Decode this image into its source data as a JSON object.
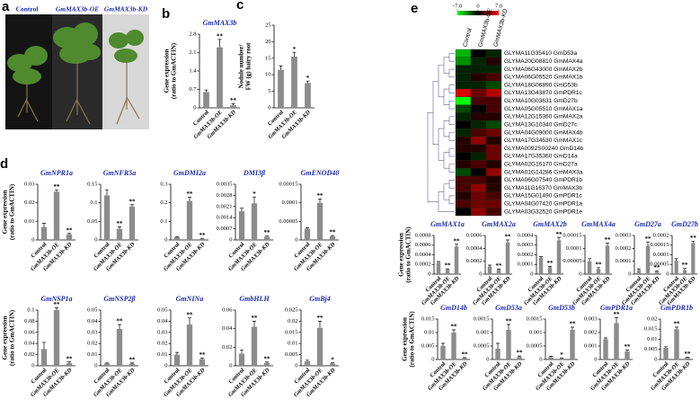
{
  "photo": {
    "panel_label": "a",
    "labels": [
      "Control",
      "GmMAX3b-OE",
      "GmMAX3b-KD"
    ]
  },
  "chart_data": [
    {
      "type": "bar",
      "panel_label": "b",
      "title": "GmMAX3b",
      "ylabel": [
        "Gene expression",
        "(ratio to GmACTIN)"
      ],
      "categories": [
        "Control",
        "GmMAX3b-OE",
        "GmMAX3b-KD"
      ],
      "values": [
        0.6,
        2.3,
        0.1
      ],
      "errors": [
        0.08,
        0.3,
        0.05
      ],
      "ylim": [
        0,
        2.8
      ],
      "yticks": [
        0,
        0.7,
        1.4,
        2.1,
        2.8
      ],
      "color": "#8c8c8c",
      "significance": [
        {
          "index": 1,
          "text": "**"
        },
        {
          "index": 2,
          "text": "**"
        }
      ]
    },
    {
      "type": "bar",
      "panel_label": "c",
      "ylabel": [
        "Nodule number/",
        "FW (g) hairy root"
      ],
      "categories": [
        "Control",
        "GmMAX3b-OE",
        "GmMAX3b-KD"
      ],
      "values": [
        11.5,
        15.5,
        7.5
      ],
      "errors": [
        1.2,
        1.3,
        0.6
      ],
      "ylim": [
        0,
        25
      ],
      "yticks": [
        0,
        5,
        10,
        15,
        20,
        25
      ],
      "color": "#8c8c8c",
      "significance": [
        {
          "index": 1,
          "text": "*"
        },
        {
          "index": 2,
          "text": "*"
        }
      ]
    },
    {
      "type": "bar",
      "panel_label": "d",
      "title": "GmNPR1a",
      "ylabel": [
        "Gene expression",
        "(ratio to GmACTIN)"
      ],
      "categories": [
        "Control",
        "GmMAX3b-OE",
        "GmMAX3b-KD"
      ],
      "values": [
        0.007,
        0.026,
        0.003
      ],
      "errors": [
        0.002,
        0.001,
        0.0005
      ],
      "ylim": [
        0,
        0.03
      ],
      "yticks": [
        0,
        0.01,
        0.02,
        0.03
      ],
      "color": "#8c8c8c",
      "significance": [
        {
          "index": 1,
          "text": "**"
        },
        {
          "index": 2,
          "text": "**"
        }
      ]
    },
    {
      "type": "bar",
      "title": "GmNFR5a",
      "categories": [
        "Control",
        "GmMAX3b-OE",
        "GmMAX3b-KD"
      ],
      "values": [
        0.12,
        0.03,
        0.09
      ],
      "errors": [
        0.015,
        0.005,
        0.005
      ],
      "ylim": [
        0,
        0.15
      ],
      "yticks": [
        0,
        0.05,
        0.1,
        0.15
      ],
      "color": "#8c8c8c",
      "significance": [
        {
          "index": 1,
          "text": "**"
        },
        {
          "index": 2,
          "text": "**"
        }
      ]
    },
    {
      "type": "bar",
      "title": "GmDMI2a",
      "categories": [
        "Control",
        "GmMAX3b-OE",
        "GmMAX3b-KD"
      ],
      "values": [
        0.015,
        0.21,
        0.005
      ],
      "errors": [
        0.003,
        0.02,
        0.002
      ],
      "ylim": [
        0,
        0.3
      ],
      "yticks": [
        0,
        0.1,
        0.2,
        0.3
      ],
      "color": "#8c8c8c",
      "significance": [
        {
          "index": 1,
          "text": "**"
        },
        {
          "index": 2,
          "text": "**"
        }
      ]
    },
    {
      "type": "bar",
      "title": "DMI3β",
      "categories": [
        "Control",
        "GmMAX3b-OE",
        "GmMAX3b-KD"
      ],
      "values": [
        0.0018,
        0.0023,
        0.0002
      ],
      "errors": [
        0.0002,
        0.0004,
        5e-05
      ],
      "ylim": [
        0,
        0.0035
      ],
      "yticks": [
        0,
        0.0007,
        0.0014,
        0.0021,
        0.0028,
        0.0035
      ],
      "color": "#8c8c8c",
      "significance": [
        {
          "index": 1,
          "text": "*"
        },
        {
          "index": 2,
          "text": "**"
        }
      ]
    },
    {
      "type": "bar",
      "title": "GmENOD40",
      "categories": [
        "Control",
        "GmMAX3b-OE",
        "GmMAX3b-KD"
      ],
      "values": [
        3e-05,
        0.0001,
        1e-05
      ],
      "errors": [
        3e-06,
        1e-05,
        2e-06
      ],
      "ylim": [
        0,
        0.00015
      ],
      "yticks": [
        0,
        5e-05,
        0.0001,
        0.00015
      ],
      "color": "#8c8c8c",
      "significance": [
        {
          "index": 1,
          "text": "**"
        },
        {
          "index": 2,
          "text": "**"
        }
      ]
    },
    {
      "type": "bar",
      "title": "GmNSP1a",
      "ylabel": [
        "Gene expression",
        "(ratio to GmACTIN)"
      ],
      "categories": [
        "Control",
        "GmMAX3b-OE",
        "GmMAX3b-KD"
      ],
      "values": [
        0.03,
        0.1,
        0.005
      ],
      "errors": [
        0.012,
        0.004,
        0.002
      ],
      "ylim": [
        0,
        0.1
      ],
      "yticks": [
        0,
        0.02,
        0.04,
        0.06,
        0.08,
        0.1
      ],
      "color": "#8c8c8c",
      "significance": [
        {
          "index": 1,
          "text": "**"
        },
        {
          "index": 2,
          "text": "**"
        }
      ]
    },
    {
      "type": "bar",
      "title": "GmNSP2β",
      "categories": [
        "Control",
        "GmMAX3b-OE",
        "GmMAX3b-KD"
      ],
      "values": [
        0.002,
        0.033,
        0.002
      ],
      "errors": [
        0.0005,
        0.004,
        0.0005
      ],
      "ylim": [
        0,
        0.05
      ],
      "yticks": [
        0,
        0.01,
        0.02,
        0.03,
        0.04,
        0.05
      ],
      "color": "#8c8c8c",
      "significance": [
        {
          "index": 1,
          "text": "**"
        },
        {
          "index": 2,
          "text": "**"
        }
      ]
    },
    {
      "type": "bar",
      "title": "GmNINa",
      "categories": [
        "Control",
        "GmMAX3b-OE",
        "GmMAX3b-KD"
      ],
      "values": [
        0.01,
        0.037,
        0.006
      ],
      "errors": [
        0.002,
        0.006,
        0.001
      ],
      "ylim": [
        0,
        0.05
      ],
      "yticks": [
        0,
        0.01,
        0.02,
        0.03,
        0.04,
        0.05
      ],
      "color": "#8c8c8c",
      "significance": [
        {
          "index": 1,
          "text": "**"
        },
        {
          "index": 2,
          "text": "**"
        }
      ]
    },
    {
      "type": "bar",
      "title": "GmbHLH",
      "categories": [
        "Control",
        "GmMAX3b-OE",
        "GmMAX3b-KD"
      ],
      "values": [
        0.013,
        0.042,
        0.003
      ],
      "errors": [
        0.004,
        0.006,
        0.001
      ],
      "ylim": [
        0,
        0.06
      ],
      "yticks": [
        0,
        0.02,
        0.04,
        0.06
      ],
      "color": "#8c8c8c",
      "significance": [
        {
          "index": 1,
          "text": "**"
        },
        {
          "index": 2,
          "text": "**"
        }
      ]
    },
    {
      "type": "bar",
      "title": "GmBj4",
      "categories": [
        "Control",
        "GmMAX3b-OE",
        "GmMAX3b-KD"
      ],
      "values": [
        0.002,
        0.017,
        0.001
      ],
      "errors": [
        0.0005,
        0.003,
        0.0003
      ],
      "ylim": [
        0,
        0.025
      ],
      "yticks": [
        0,
        0.005,
        0.01,
        0.015,
        0.02,
        0.025
      ],
      "color": "#8c8c8c",
      "significance": [
        {
          "index": 1,
          "text": "**"
        },
        {
          "index": 2,
          "text": "*"
        }
      ]
    },
    {
      "type": "heatmap",
      "panel_label": "e",
      "clim": [
        -7,
        7
      ],
      "colorbar_ticks": [
        {
          "value": -7,
          "label": "-7.0"
        },
        0,
        {
          "value": 7,
          "label": "7.0"
        }
      ],
      "columns": [
        "Control",
        "GmMAX3b-OE",
        "GmMAX3b-KD"
      ],
      "rows": [
        "GLYMA11G35410 GmD53a",
        "GLYMA20G08810 GmMAX4a",
        "GLYMA06G43000 GmMAX2b",
        "GLYMA06G05520 GmMAX1b",
        "GLYMA18G06890 GmD53b",
        "GLYMA13G43870 GmPDR1c",
        "GLYMA10G03631 GmD27b",
        "GLYMA05G05510 GmMAX1a",
        "GLYMA12G15360 GmMAX2a",
        "GLYMA13G10340 GmD27c",
        "GLYMA04G09000 GmMAX4b",
        "GLYMA17G34530 GmMAX1c",
        "GLYMA0092S00240 GmD14b",
        "GLYMA17G35360 GmD14a",
        "GLYMA02G16170 GmD27a",
        "GLYMA01G14286 GmMAX3a",
        "GLYMA06G07540 GmPDR1b",
        "GLYMA11G16370 GmMAX3b",
        "GLYMA15G01490 GmPDR1c",
        "GLYMA04G07420 GmPDR1a",
        "GLYMA03G32520 GmPDR1e"
      ],
      "values": [
        [
          -5,
          0,
          -1
        ],
        [
          -4,
          -1,
          1
        ],
        [
          -1,
          -1,
          -1
        ],
        [
          -1,
          1,
          2
        ],
        [
          -1,
          -1,
          -2
        ],
        [
          6,
          3,
          5
        ],
        [
          -7,
          2,
          2
        ],
        [
          -2,
          0,
          2
        ],
        [
          -1,
          1,
          1
        ],
        [
          0,
          -1,
          -2
        ],
        [
          -1,
          2,
          3
        ],
        [
          1,
          4,
          1
        ],
        [
          1,
          1,
          3
        ],
        [
          0,
          -1,
          3
        ],
        [
          1,
          2,
          1
        ],
        [
          -2,
          0,
          4
        ],
        [
          2,
          2,
          1
        ],
        [
          2,
          4,
          1
        ],
        [
          1,
          3,
          2
        ],
        [
          2,
          3,
          3
        ],
        [
          0,
          4,
          2
        ]
      ]
    },
    {
      "type": "bar",
      "title": "GmMAX1a",
      "ylabel": [
        "Gene expression",
        "(ratio to GmACTIN)"
      ],
      "categories": [
        "Control",
        "GmMAX3b-OE",
        "GmMAX3b-KD"
      ],
      "values": [
        0.00024,
        9e-05,
        0.00057
      ],
      "errors": [
        2e-05,
        2e-05,
        5e-05
      ],
      "ylim": [
        0,
        0.0008
      ],
      "yticks": [
        0,
        0.0002,
        0.0004,
        0.0006,
        0.0008
      ],
      "color": "#8c8c8c",
      "significance": [
        {
          "index": 1,
          "text": "**"
        },
        {
          "index": 2,
          "text": "**"
        }
      ]
    },
    {
      "type": "bar",
      "title": "GmMAX2a",
      "categories": [
        "Control",
        "GmMAX3b-OE",
        "GmMAX3b-KD"
      ],
      "values": [
        0.00012,
        7e-05,
        0.00049
      ],
      "errors": [
        2e-05,
        1e-05,
        4e-05
      ],
      "ylim": [
        0,
        0.0006
      ],
      "yticks": [
        0,
        0.0002,
        0.0004,
        0.0006
      ],
      "color": "#8c8c8c",
      "significance": [
        {
          "index": 1,
          "text": "**"
        },
        {
          "index": 2,
          "text": "**"
        }
      ]
    },
    {
      "type": "bar",
      "title": "GmMAX2b",
      "categories": [
        "Control",
        "GmMAX3b-OE",
        "GmMAX3b-KD"
      ],
      "values": [
        0.00017,
        7e-05,
        0.00035
      ],
      "errors": [
        1e-05,
        1e-05,
        3e-05
      ],
      "ylim": [
        0,
        0.0004
      ],
      "yticks": [
        0,
        0.0001,
        0.0002,
        0.0003,
        0.0004
      ],
      "color": "#8c8c8c",
      "significance": [
        {
          "index": 1,
          "text": "**"
        },
        {
          "index": 2,
          "text": "**"
        }
      ]
    },
    {
      "type": "bar",
      "title": "GmMAX4a",
      "categories": [
        "Control",
        "GmMAX3b-OE",
        "GmMAX3b-KD"
      ],
      "values": [
        5e-05,
        2e-05,
        0.00011
      ],
      "errors": [
        1e-05,
        5e-06,
        1e-05
      ],
      "ylim": [
        0,
        0.00015
      ],
      "yticks": [
        0,
        5e-05,
        0.0001,
        0.00015
      ],
      "color": "#8c8c8c",
      "significance": [
        {
          "index": 1,
          "text": "**"
        },
        {
          "index": 2,
          "text": "**"
        }
      ]
    },
    {
      "type": "bar",
      "title": "GmD27a",
      "categories": [
        "Control",
        "GmMAX3b-OE",
        "GmMAX3b-KD"
      ],
      "values": [
        3e-05,
        0.00022,
        2e-05
      ],
      "errors": [
        1e-05,
        3e-05,
        5e-06
      ],
      "ylim": [
        0,
        0.0003
      ],
      "yticks": [
        0,
        0.0001,
        0.0002,
        0.0003
      ],
      "color": "#8c8c8c",
      "significance": [
        {
          "index": 1,
          "text": "**"
        },
        {
          "index": 2,
          "text": "**"
        }
      ]
    },
    {
      "type": "bar",
      "title": "GmD27b",
      "categories": [
        "Control",
        "GmMAX3b-OE",
        "GmMAX3b-KD"
      ],
      "values": [
        7e-05,
        2e-05,
        0.00016
      ],
      "errors": [
        1e-05,
        1e-05,
        1e-05
      ],
      "ylim": [
        0,
        0.0002
      ],
      "yticks": [
        0,
        5e-05,
        0.0001,
        0.00015,
        0.0002
      ],
      "color": "#8c8c8c",
      "significance": [
        {
          "index": 1,
          "text": "**"
        },
        {
          "index": 2,
          "text": "**"
        }
      ]
    },
    {
      "type": "bar",
      "title": "GmD14b",
      "ylabel": [
        "Gene expression",
        "(ratio to GmACTIN)"
      ],
      "categories": [
        "Control",
        "GmMAX3b-OE",
        "GmMAX3b-KD"
      ],
      "values": [
        0.005,
        0.01,
        0.0005
      ],
      "errors": [
        0.001,
        0.001,
        0.0002
      ],
      "ylim": [
        0,
        0.015
      ],
      "yticks": [
        0,
        0.005,
        0.01,
        0.015
      ],
      "color": "#8c8c8c",
      "significance": [
        {
          "index": 1,
          "text": "**"
        },
        {
          "index": 2,
          "text": "**"
        }
      ]
    },
    {
      "type": "bar",
      "title": "GmD53a",
      "categories": [
        "Control",
        "GmMAX3b-OE",
        "GmMAX3b-KD"
      ],
      "values": [
        0.0004,
        0.0011,
        0.0001
      ],
      "errors": [
        0.0002,
        0.0002,
        3e-05
      ],
      "ylim": [
        0,
        0.0015
      ],
      "yticks": [
        0,
        0.0005,
        0.001,
        0.0015
      ],
      "color": "#8c8c8c",
      "significance": [
        {
          "index": 1,
          "text": "**"
        },
        {
          "index": 2,
          "text": "**"
        }
      ]
    },
    {
      "type": "bar",
      "title": "GmD53b",
      "categories": [
        "Control",
        "GmMAX3b-OE",
        "GmMAX3b-KD"
      ],
      "values": [
        8e-05,
        3e-05,
        0.0011
      ],
      "errors": [
        4e-05,
        2e-05,
        0.0001
      ],
      "ylim": [
        0,
        0.0015
      ],
      "yticks": [
        0,
        0.0005,
        0.001,
        0.0015
      ],
      "color": "#8c8c8c",
      "significance": [
        {
          "index": 1,
          "text": "*"
        },
        {
          "index": 2,
          "text": "**"
        }
      ]
    },
    {
      "type": "bar",
      "title": "GmPDR1a",
      "categories": [
        "Control",
        "GmMAX3b-OE",
        "GmMAX3b-KD"
      ],
      "values": [
        0.0015,
        0.0027,
        0.0006
      ],
      "errors": [
        0.0001,
        0.0004,
        0.0001
      ],
      "ylim": [
        0,
        0.003
      ],
      "yticks": [
        0,
        0.001,
        0.002,
        0.003
      ],
      "color": "#8c8c8c",
      "significance": [
        {
          "index": 1,
          "text": "**"
        },
        {
          "index": 2,
          "text": "**"
        }
      ]
    },
    {
      "type": "bar",
      "title": "GmPDR1b",
      "categories": [
        "Control",
        "GmMAX3b-OE",
        "GmMAX3b-KD"
      ],
      "values": [
        0.0058,
        0.015,
        0.001
      ],
      "errors": [
        0.0005,
        0.001,
        0.0002
      ],
      "ylim": [
        0,
        0.02
      ],
      "yticks": [
        0,
        0.005,
        0.01,
        0.015,
        0.02
      ],
      "color": "#8c8c8c",
      "significance": [
        {
          "index": 1,
          "text": "**"
        },
        {
          "index": 2,
          "text": "**"
        }
      ]
    }
  ]
}
